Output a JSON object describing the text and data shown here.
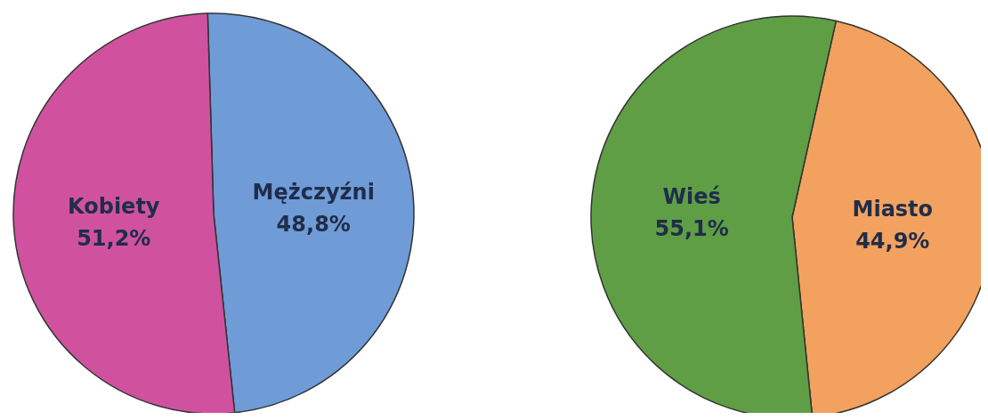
{
  "chart_data": [
    {
      "type": "pie",
      "categories": [
        "Mężczyźni",
        "Kobiety"
      ],
      "values": [
        48.8,
        51.2
      ],
      "colors": [
        "#6f9bd6",
        "#d0529f"
      ],
      "value_labels": [
        "48,8%",
        "51,2%"
      ]
    },
    {
      "type": "pie",
      "categories": [
        "Miasto",
        "Wieś"
      ],
      "values": [
        44.9,
        55.1
      ],
      "colors": [
        "#f3a15e",
        "#5f9e45"
      ],
      "value_labels": [
        "44,9%",
        "55,1%"
      ]
    }
  ]
}
